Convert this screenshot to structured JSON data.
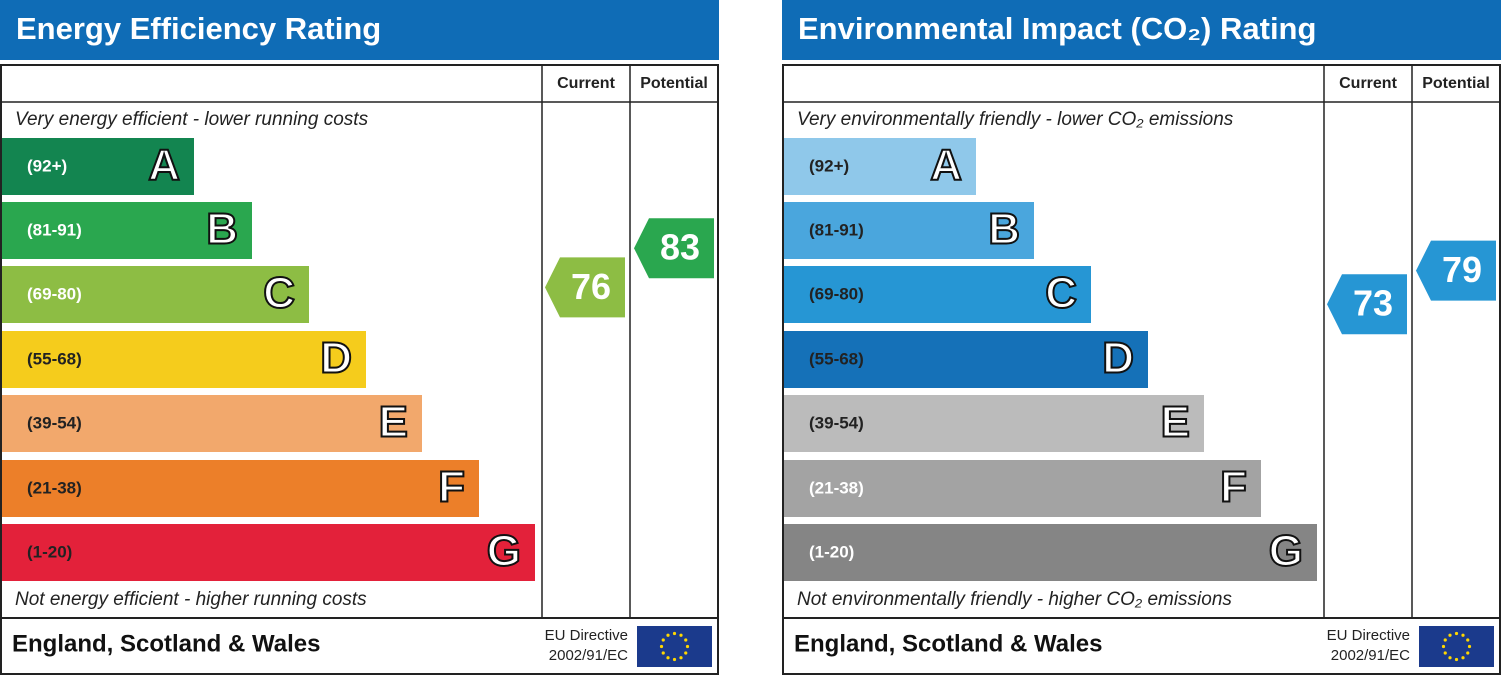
{
  "panels": [
    {
      "title": "Energy Efficiency Rating",
      "current_header": "Current",
      "potential_header": "Potential",
      "top_text": "Very energy efficient - lower running costs",
      "bands": [
        {
          "range": "(92+)",
          "letter": "A",
          "color": "#138550"
        },
        {
          "range": "(81-91)",
          "letter": "B",
          "color": "#2aa74f"
        },
        {
          "range": "(69-80)",
          "letter": "C",
          "color": "#8dbd44"
        },
        {
          "range": "(55-68)",
          "letter": "D",
          "color": "#f5cc1c"
        },
        {
          "range": "(39-54)",
          "letter": "E",
          "color": "#f2a86c"
        },
        {
          "range": "(21-38)",
          "letter": "F",
          "color": "#ec7f29"
        },
        {
          "range": "(1-20)",
          "letter": "G",
          "color": "#e3213a"
        }
      ],
      "bottom_text": "Not energy efficient - higher running costs",
      "region": "England, Scotland & Wales",
      "directive_line1": "EU Directive",
      "directive_line2": "2002/91/EC",
      "current": 76,
      "potential": 83
    },
    {
      "title": "Environmental Impact (CO₂) Rating",
      "current_header": "Current",
      "potential_header": "Potential",
      "top_text": "Very environmentally friendly - lower CO₂ emissions",
      "bands": [
        {
          "range": "(92+)",
          "letter": "A",
          "color": "#8fc8ea"
        },
        {
          "range": "(81-91)",
          "letter": "B",
          "color": "#4aa6dd"
        },
        {
          "range": "(69-80)",
          "letter": "C",
          "color": "#2696d4"
        },
        {
          "range": "(55-68)",
          "letter": "D",
          "color": "#1571b8"
        },
        {
          "range": "(39-54)",
          "letter": "E",
          "color": "#bbbbbb"
        },
        {
          "range": "(21-38)",
          "letter": "F",
          "color": "#a3a3a3"
        },
        {
          "range": "(1-20)",
          "letter": "G",
          "color": "#858585"
        }
      ],
      "bottom_text": "Not environmentally friendly - higher CO₂ emissions",
      "region": "England, Scotland & Wales",
      "directive_line1": "EU Directive",
      "directive_line2": "2002/91/EC",
      "current": 73,
      "potential": 79
    }
  ]
}
